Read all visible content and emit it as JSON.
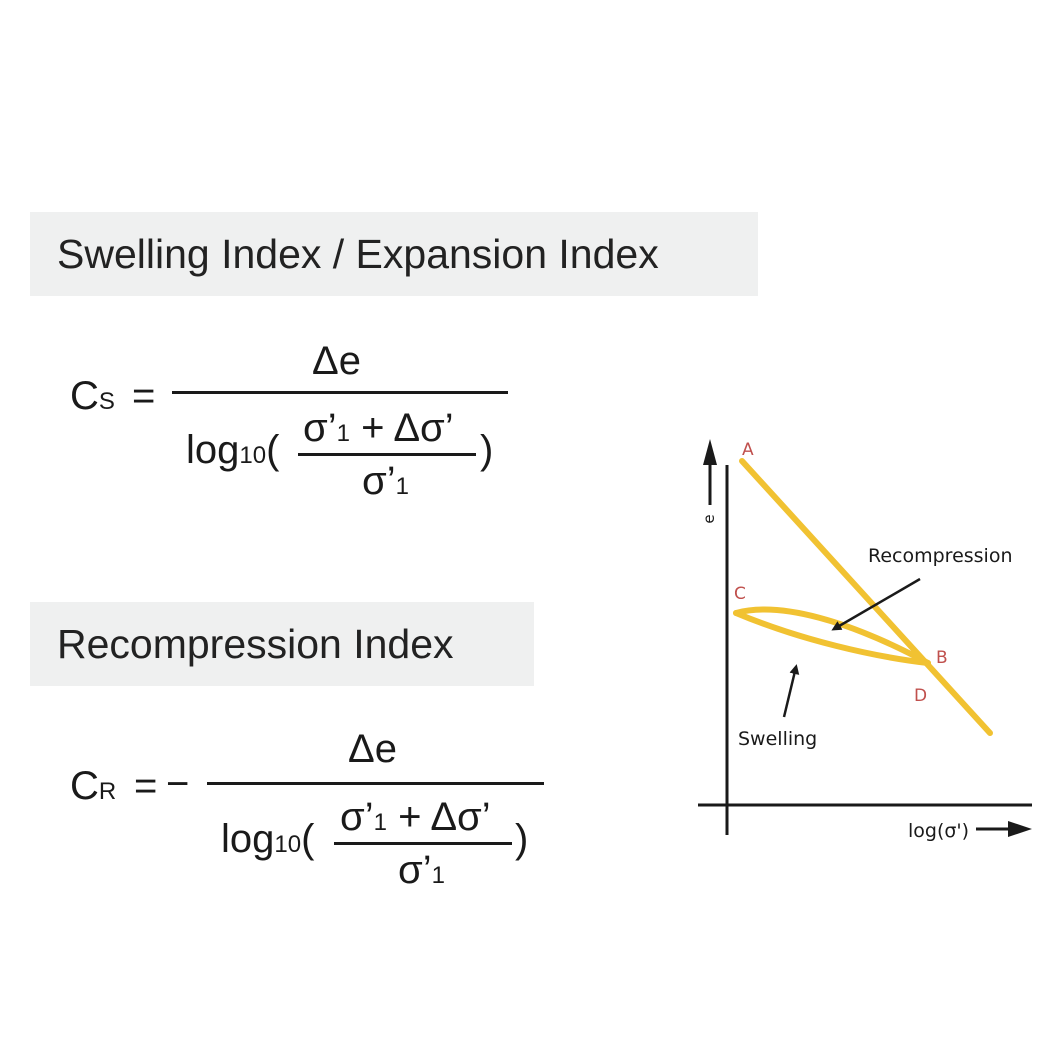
{
  "sections": {
    "swelling": {
      "title": "Swelling Index / Expansion Index"
    },
    "recompression": {
      "title": "Recompression Index"
    }
  },
  "formula_cs": {
    "symbol": "C",
    "symbol_sub": "S",
    "equals": "=",
    "numerator": "Δe",
    "log": "log",
    "log_base": "10",
    "open_paren": "(",
    "close_paren": ")",
    "inner_num_a": "σ’",
    "inner_num_a_sub": "1",
    "inner_num_b": "+ Δσ’",
    "inner_den": "σ’",
    "inner_den_sub": "1"
  },
  "formula_cr": {
    "symbol": "C",
    "symbol_sub": "R",
    "equals": "=",
    "minus": "−",
    "numerator": "Δe",
    "log": "log",
    "log_base": "10",
    "open_paren": "(",
    "close_paren": ")",
    "inner_num_a": "σ’",
    "inner_num_a_sub": "1",
    "inner_num_b": "+ Δσ’",
    "inner_den": "σ’",
    "inner_den_sub": "1"
  },
  "diagram": {
    "y_axis_label": "e",
    "x_axis_label": "log(σ')",
    "points": {
      "A": "A",
      "B": "B",
      "C": "C",
      "D": "D"
    },
    "annotations": {
      "recompression": "Recompression",
      "swelling": "Swelling"
    },
    "colors": {
      "curve": "#f1c232",
      "point_labels": "#c0504d",
      "axes": "#1a1a1a"
    }
  }
}
